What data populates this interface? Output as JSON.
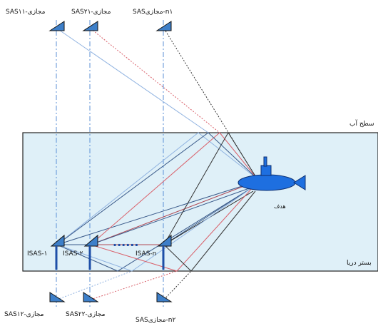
{
  "virtual_top": [
    {
      "label": "SASمجازی-۱۱"
    },
    {
      "label": "SASمجازی-۲۱"
    },
    {
      "label": "SASمجازی-n۱"
    }
  ],
  "virtual_bottom": [
    {
      "label": "SASمجازی-۱۲"
    },
    {
      "label": "SASمجازی-۲۲"
    },
    {
      "label": "SASمجازی-n۲"
    }
  ],
  "real_sensors": [
    {
      "label": "ISAS-۱"
    },
    {
      "label": "ISAS-۲"
    },
    {
      "label": "ISAS-n"
    }
  ],
  "dots": "......",
  "surface_label": "سطح آب",
  "seabed_label": "بستر دریا",
  "target_label": "هدف",
  "colors": {
    "water": "#dff0f8",
    "sensor": "#3d7fc9",
    "submarine": "#1e6fe0",
    "path_blue": "#8fb2e0",
    "path_red": "#d9606a",
    "path_dark": "#333333",
    "path_navy": "#3a5a8a"
  }
}
